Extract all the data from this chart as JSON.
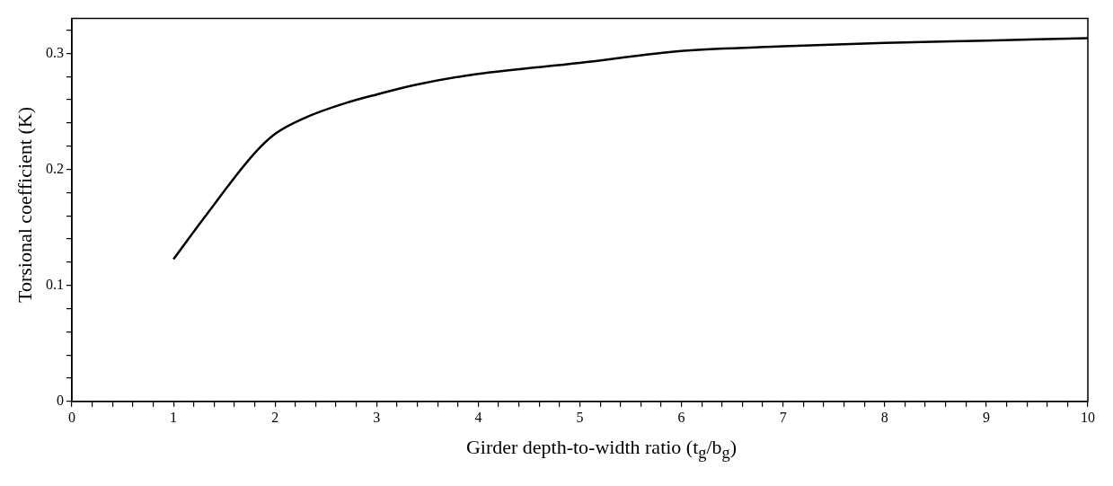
{
  "chart_data": {
    "type": "line",
    "xlabel": "Girder depth-to-width ratio (t$_{g}$/b$_{g}$)",
    "ylabel": "Torsional coefficient (K)",
    "x": [
      1,
      1.3,
      1.79,
      2,
      2.31,
      2.69,
      3,
      3.38,
      4,
      5,
      6,
      7,
      8,
      9,
      10
    ],
    "series": [
      {
        "color": "#000000",
        "values": [
          0.1225,
          0.158,
          0.213,
          0.2305,
          0.245,
          0.257,
          0.2645,
          0.2728,
          0.2823,
          0.2917,
          0.302,
          0.306,
          0.309,
          0.311,
          0.313
        ]
      }
    ],
    "xlim": [
      0,
      10
    ],
    "ylim": [
      0,
      0.33
    ],
    "xticks": [
      0,
      {
        "value": 0.2,
        "label": null
      },
      {
        "value": 0.4,
        "label": null
      },
      {
        "value": 0.6,
        "label": null
      },
      {
        "value": 0.8,
        "label": null
      },
      1,
      {
        "value": 1.2,
        "label": null
      },
      {
        "value": 1.4,
        "label": null
      },
      {
        "value": 1.6,
        "label": null
      },
      {
        "value": 1.8,
        "label": null
      },
      2,
      {
        "value": 2.2,
        "label": null
      },
      {
        "value": 2.4,
        "label": null
      },
      {
        "value": 2.6,
        "label": null
      },
      {
        "value": 2.8,
        "label": null
      },
      3,
      {
        "value": 3.2,
        "label": null
      },
      {
        "value": 3.4,
        "label": null
      },
      {
        "value": 3.6,
        "label": null
      },
      {
        "value": 3.8,
        "label": null
      },
      4,
      {
        "value": 4.2,
        "label": null
      },
      {
        "value": 4.4,
        "label": null
      },
      {
        "value": 4.6,
        "label": null
      },
      {
        "value": 4.8,
        "label": null
      },
      5,
      {
        "value": 5.2,
        "label": null
      },
      {
        "value": 5.4,
        "label": null
      },
      {
        "value": 5.6,
        "label": null
      },
      {
        "value": 5.8,
        "label": null
      },
      6,
      {
        "value": 6.2,
        "label": null
      },
      {
        "value": 6.4,
        "label": null
      },
      {
        "value": 6.6,
        "label": null
      },
      {
        "value": 6.8,
        "label": null
      },
      7,
      {
        "value": 7.2,
        "label": null
      },
      {
        "value": 7.4,
        "label": null
      },
      {
        "value": 7.6,
        "label": null
      },
      {
        "value": 7.8,
        "label": null
      },
      8,
      {
        "value": 8.2,
        "label": null
      },
      {
        "value": 8.4,
        "label": null
      },
      {
        "value": 8.6,
        "label": null
      },
      {
        "value": 8.8,
        "label": null
      },
      9,
      {
        "value": 9.2,
        "label": null
      },
      {
        "value": 9.4,
        "label": null
      },
      {
        "value": 9.6,
        "label": null
      },
      {
        "value": 9.8,
        "label": null
      },
      10
    ],
    "yticks": [
      0,
      {
        "value": 0.02,
        "label": null
      },
      {
        "value": 0.04,
        "label": null
      },
      {
        "value": 0.06,
        "label": null
      },
      {
        "value": 0.08,
        "label": null
      },
      0.1,
      {
        "value": 0.12,
        "label": null
      },
      {
        "value": 0.14,
        "label": null
      },
      {
        "value": 0.16,
        "label": null
      },
      {
        "value": 0.18,
        "label": null
      },
      0.2,
      {
        "value": 0.22,
        "label": null
      },
      {
        "value": 0.24,
        "label": null
      },
      {
        "value": 0.26,
        "label": null
      },
      {
        "value": 0.28,
        "label": null
      },
      0.3,
      {
        "value": 0.32,
        "label": null
      }
    ],
    "grid": false,
    "legend": false,
    "marker": "none",
    "line_style": "solid"
  }
}
